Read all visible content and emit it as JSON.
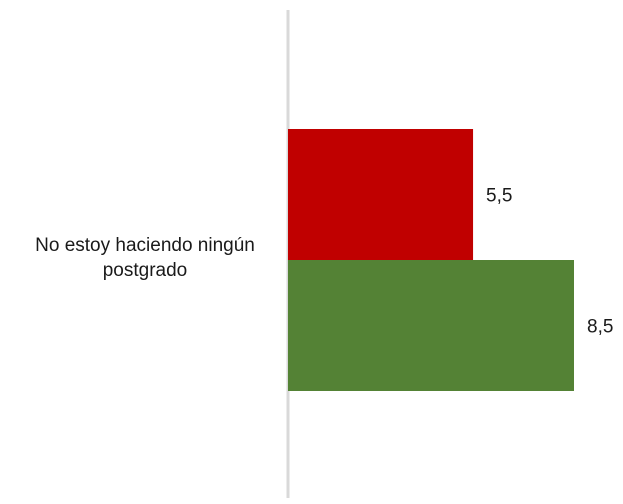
{
  "chart_data": {
    "type": "bar",
    "orientation": "horizontal",
    "categories": [
      "No estoy haciendo ningún postgrado"
    ],
    "series": [
      {
        "values": [
          5.5
        ],
        "color": "#c00000"
      },
      {
        "values": [
          8.5
        ],
        "color": "#548235"
      }
    ],
    "data_labels": [
      "5,5",
      "8,5"
    ],
    "xlim": [
      0,
      8.5
    ],
    "axis_color": "#d9d9d9",
    "grid": false,
    "legend": "none"
  }
}
